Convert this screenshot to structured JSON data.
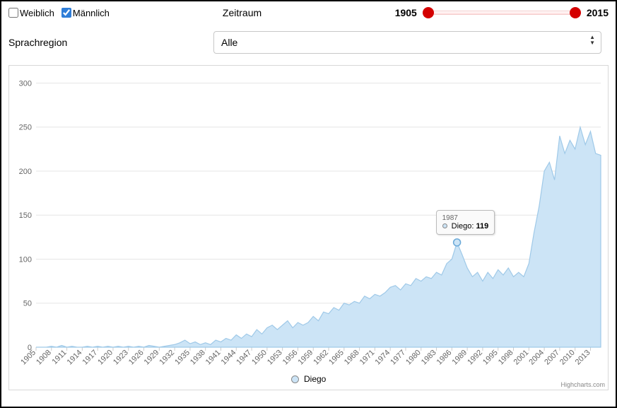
{
  "controls": {
    "female_label": "Weiblich",
    "female_checked": false,
    "male_label": "Männlich",
    "male_checked": true,
    "zeitraum_label": "Zeitraum",
    "year_min": "1905",
    "year_max": "2015"
  },
  "region": {
    "label": "Sprachregion",
    "selected": "Alle"
  },
  "chart": {
    "type": "area",
    "series_name": "Diego",
    "series_color_fill": "#cce4f6",
    "series_color_stroke": "#9fc9e8",
    "background_color": "#ffffff",
    "grid_color": "#e6e6e6",
    "ylim": [
      0,
      310
    ],
    "ytick_step": 50,
    "yticks": [
      0,
      50,
      100,
      150,
      200,
      250,
      300
    ],
    "xtick_step": 3,
    "xtick_years": [
      1905,
      1908,
      1911,
      1914,
      1917,
      1920,
      1923,
      1926,
      1929,
      1932,
      1935,
      1938,
      1941,
      1944,
      1947,
      1950,
      1953,
      1956,
      1959,
      1962,
      1965,
      1968,
      1971,
      1974,
      1977,
      1980,
      1983,
      1986,
      1989,
      1992,
      1995,
      1998,
      2001,
      2004,
      2007,
      2010,
      2013
    ],
    "x_range": [
      1905,
      2015
    ],
    "label_fontsize": 11,
    "line_width": 1.2,
    "credit": "Highcharts.com",
    "tooltip": {
      "year": "1987",
      "name": "Diego",
      "value": "119"
    },
    "points": [
      {
        "x": 1905,
        "y": 0
      },
      {
        "x": 1906,
        "y": 0
      },
      {
        "x": 1907,
        "y": 0
      },
      {
        "x": 1908,
        "y": 1
      },
      {
        "x": 1909,
        "y": 0
      },
      {
        "x": 1910,
        "y": 2
      },
      {
        "x": 1911,
        "y": 0
      },
      {
        "x": 1912,
        "y": 1
      },
      {
        "x": 1913,
        "y": 0
      },
      {
        "x": 1914,
        "y": 0
      },
      {
        "x": 1915,
        "y": 1
      },
      {
        "x": 1916,
        "y": 0
      },
      {
        "x": 1917,
        "y": 1
      },
      {
        "x": 1918,
        "y": 0
      },
      {
        "x": 1919,
        "y": 1
      },
      {
        "x": 1920,
        "y": 0
      },
      {
        "x": 1921,
        "y": 1
      },
      {
        "x": 1922,
        "y": 0
      },
      {
        "x": 1923,
        "y": 1
      },
      {
        "x": 1924,
        "y": 0
      },
      {
        "x": 1925,
        "y": 1
      },
      {
        "x": 1926,
        "y": 0
      },
      {
        "x": 1927,
        "y": 2
      },
      {
        "x": 1928,
        "y": 1
      },
      {
        "x": 1929,
        "y": 0
      },
      {
        "x": 1930,
        "y": 1
      },
      {
        "x": 1931,
        "y": 2
      },
      {
        "x": 1932,
        "y": 3
      },
      {
        "x": 1933,
        "y": 5
      },
      {
        "x": 1934,
        "y": 8
      },
      {
        "x": 1935,
        "y": 4
      },
      {
        "x": 1936,
        "y": 6
      },
      {
        "x": 1937,
        "y": 3
      },
      {
        "x": 1938,
        "y": 5
      },
      {
        "x": 1939,
        "y": 3
      },
      {
        "x": 1940,
        "y": 8
      },
      {
        "x": 1941,
        "y": 6
      },
      {
        "x": 1942,
        "y": 10
      },
      {
        "x": 1943,
        "y": 8
      },
      {
        "x": 1944,
        "y": 14
      },
      {
        "x": 1945,
        "y": 10
      },
      {
        "x": 1946,
        "y": 15
      },
      {
        "x": 1947,
        "y": 12
      },
      {
        "x": 1948,
        "y": 20
      },
      {
        "x": 1949,
        "y": 15
      },
      {
        "x": 1950,
        "y": 22
      },
      {
        "x": 1951,
        "y": 25
      },
      {
        "x": 1952,
        "y": 20
      },
      {
        "x": 1953,
        "y": 25
      },
      {
        "x": 1954,
        "y": 30
      },
      {
        "x": 1955,
        "y": 22
      },
      {
        "x": 1956,
        "y": 28
      },
      {
        "x": 1957,
        "y": 25
      },
      {
        "x": 1958,
        "y": 28
      },
      {
        "x": 1959,
        "y": 35
      },
      {
        "x": 1960,
        "y": 30
      },
      {
        "x": 1961,
        "y": 40
      },
      {
        "x": 1962,
        "y": 38
      },
      {
        "x": 1963,
        "y": 45
      },
      {
        "x": 1964,
        "y": 42
      },
      {
        "x": 1965,
        "y": 50
      },
      {
        "x": 1966,
        "y": 48
      },
      {
        "x": 1967,
        "y": 52
      },
      {
        "x": 1968,
        "y": 50
      },
      {
        "x": 1969,
        "y": 58
      },
      {
        "x": 1970,
        "y": 55
      },
      {
        "x": 1971,
        "y": 60
      },
      {
        "x": 1972,
        "y": 58
      },
      {
        "x": 1973,
        "y": 62
      },
      {
        "x": 1974,
        "y": 68
      },
      {
        "x": 1975,
        "y": 70
      },
      {
        "x": 1976,
        "y": 65
      },
      {
        "x": 1977,
        "y": 72
      },
      {
        "x": 1978,
        "y": 70
      },
      {
        "x": 1979,
        "y": 78
      },
      {
        "x": 1980,
        "y": 75
      },
      {
        "x": 1981,
        "y": 80
      },
      {
        "x": 1982,
        "y": 78
      },
      {
        "x": 1983,
        "y": 85
      },
      {
        "x": 1984,
        "y": 82
      },
      {
        "x": 1985,
        "y": 95
      },
      {
        "x": 1986,
        "y": 100
      },
      {
        "x": 1987,
        "y": 119
      },
      {
        "x": 1988,
        "y": 105
      },
      {
        "x": 1989,
        "y": 90
      },
      {
        "x": 1990,
        "y": 80
      },
      {
        "x": 1991,
        "y": 85
      },
      {
        "x": 1992,
        "y": 75
      },
      {
        "x": 1993,
        "y": 85
      },
      {
        "x": 1994,
        "y": 78
      },
      {
        "x": 1995,
        "y": 88
      },
      {
        "x": 1996,
        "y": 82
      },
      {
        "x": 1997,
        "y": 90
      },
      {
        "x": 1998,
        "y": 80
      },
      {
        "x": 1999,
        "y": 85
      },
      {
        "x": 2000,
        "y": 80
      },
      {
        "x": 2001,
        "y": 95
      },
      {
        "x": 2002,
        "y": 130
      },
      {
        "x": 2003,
        "y": 160
      },
      {
        "x": 2004,
        "y": 200
      },
      {
        "x": 2005,
        "y": 210
      },
      {
        "x": 2006,
        "y": 190
      },
      {
        "x": 2007,
        "y": 240
      },
      {
        "x": 2008,
        "y": 220
      },
      {
        "x": 2009,
        "y": 235
      },
      {
        "x": 2010,
        "y": 225
      },
      {
        "x": 2011,
        "y": 250
      },
      {
        "x": 2012,
        "y": 230
      },
      {
        "x": 2013,
        "y": 245
      },
      {
        "x": 2014,
        "y": 220
      },
      {
        "x": 2015,
        "y": 218
      }
    ]
  }
}
